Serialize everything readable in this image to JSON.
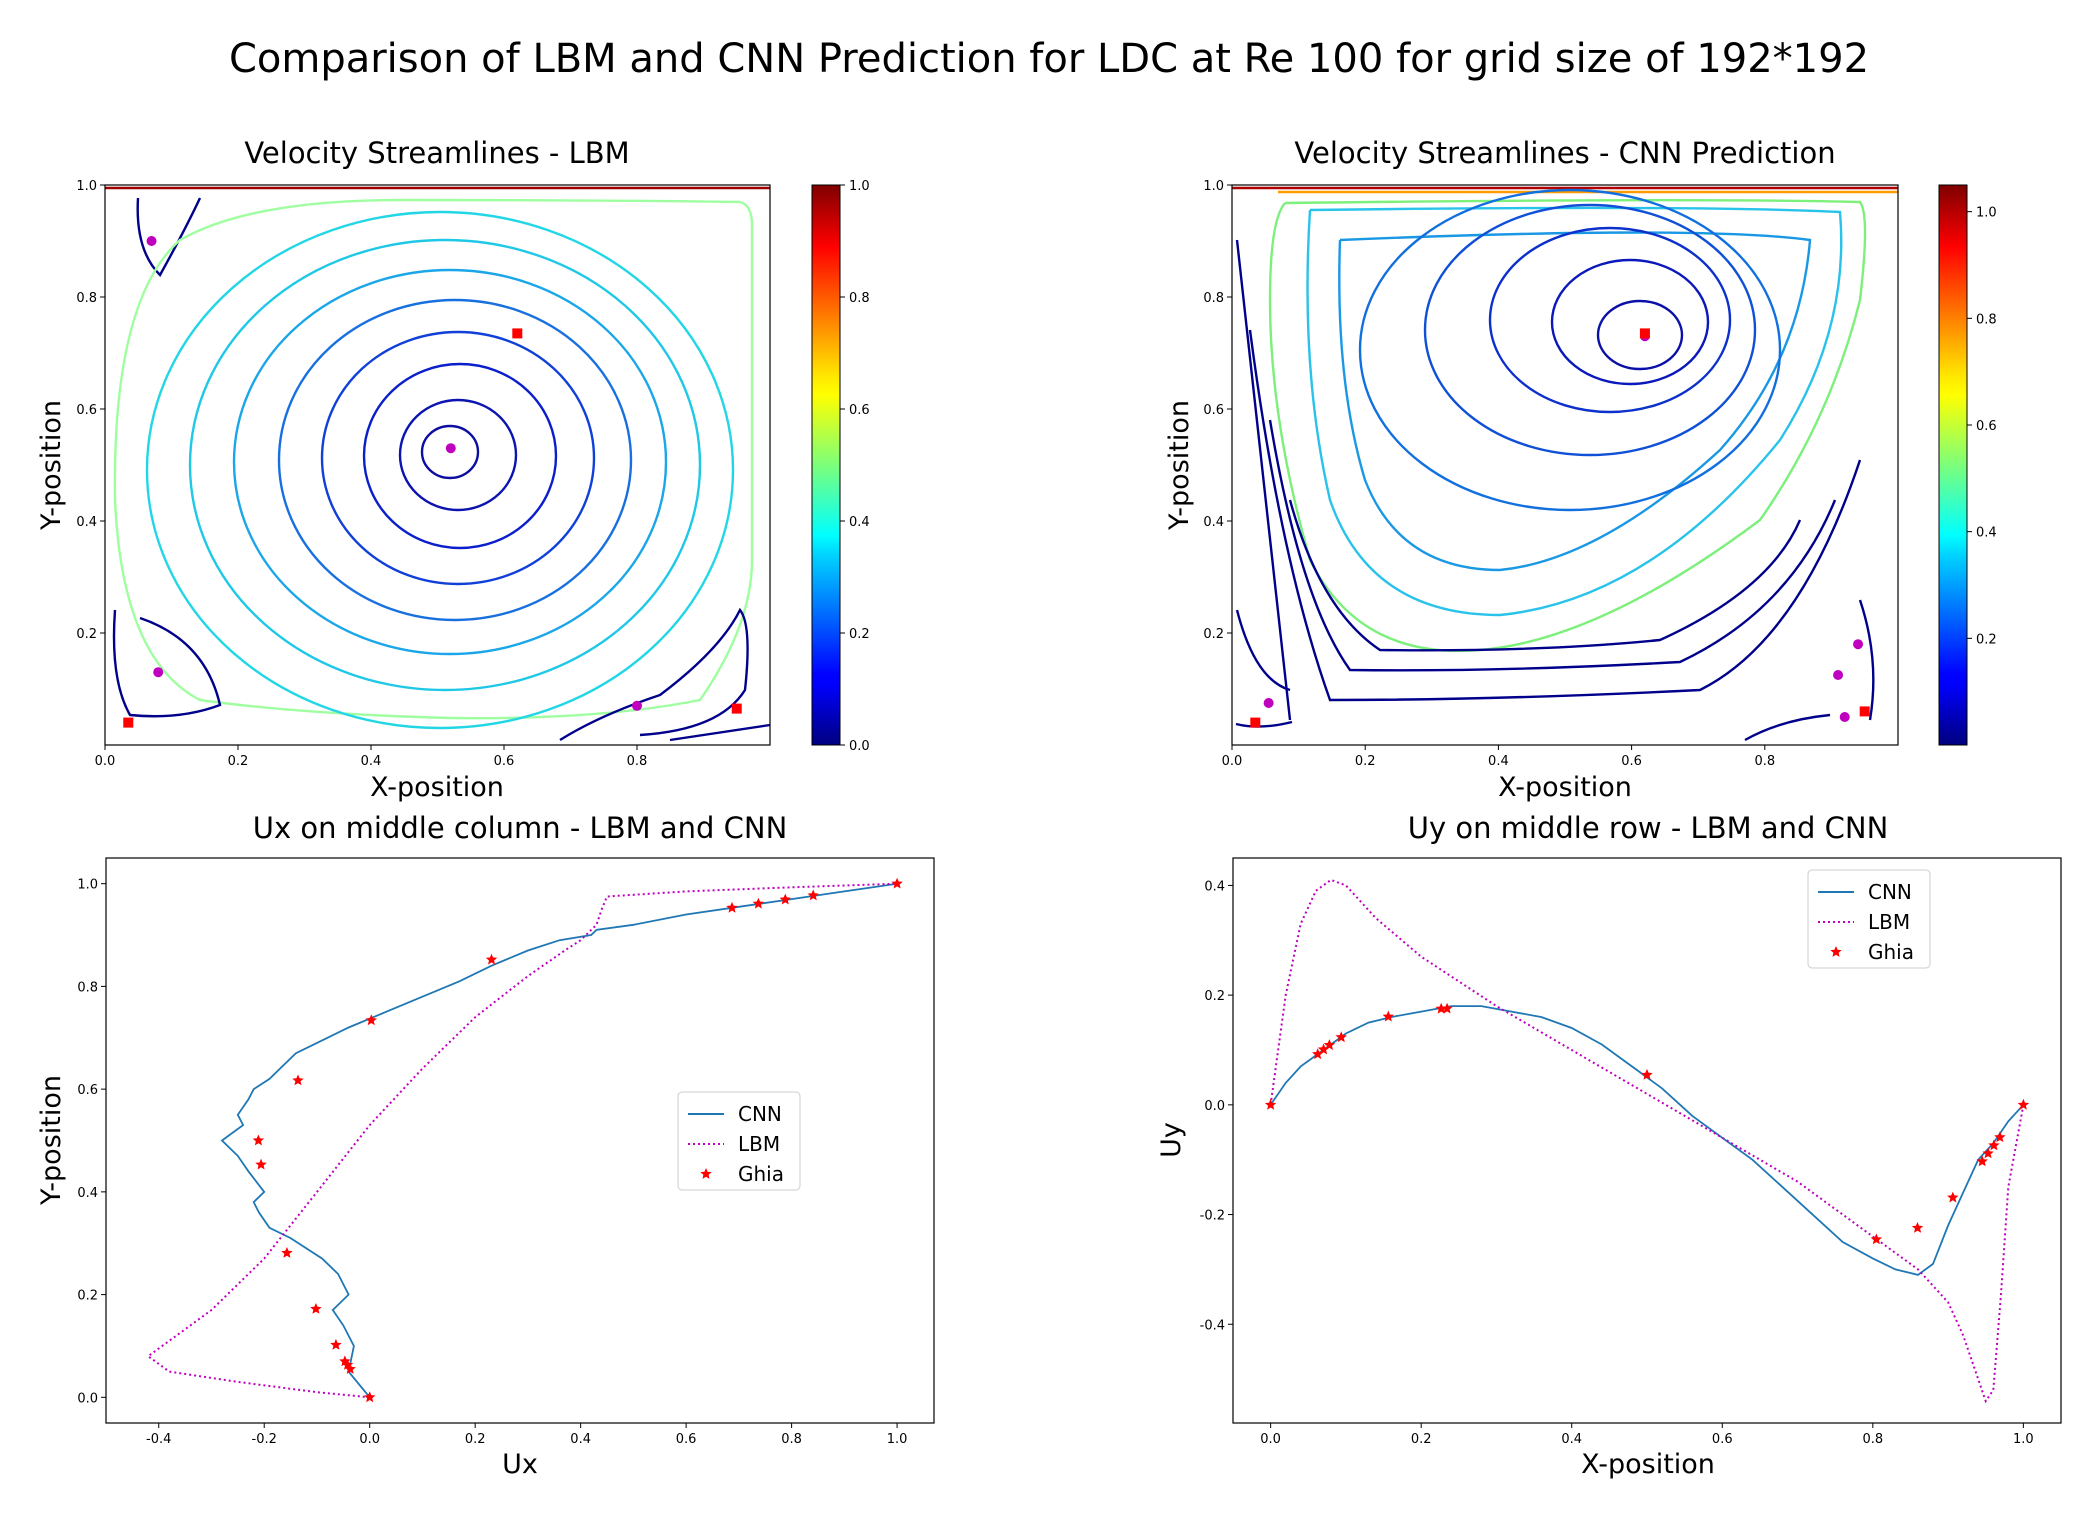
{
  "suptitle": "Comparison of LBM and CNN Prediction for LDC at Re 100 for grid size of 192*192",
  "colors": {
    "cnn": "#1f77b4",
    "lbm": "#bf00bf",
    "ghia": "#ff0000",
    "center_marker": "#bf00bf",
    "square_marker": "#ff0000",
    "colormap": "jet"
  },
  "chart_data": [
    {
      "type": "streamplot",
      "title": "Velocity Streamlines - LBM",
      "xlabel": "X-position",
      "ylabel": "Y-position",
      "xlim": [
        0,
        1
      ],
      "ylim": [
        0,
        1
      ],
      "xticks": [
        "0.0",
        "0.2",
        "0.4",
        "0.6",
        "0.8"
      ],
      "yticks": [
        "0.2",
        "0.4",
        "0.6",
        "0.8",
        "1.0"
      ],
      "colorbar": {
        "min": 0.0,
        "max": 1.0,
        "ticks": [
          "0.0",
          "0.2",
          "0.4",
          "0.6",
          "0.8",
          "1.0"
        ]
      },
      "vortex_centers": [
        {
          "x": 0.07,
          "y": 0.9
        },
        {
          "x": 0.52,
          "y": 0.53
        },
        {
          "x": 0.08,
          "y": 0.13
        },
        {
          "x": 0.8,
          "y": 0.07
        }
      ],
      "reference_points": [
        {
          "x": 0.62,
          "y": 0.735
        },
        {
          "x": 0.035,
          "y": 0.04
        },
        {
          "x": 0.95,
          "y": 0.065
        }
      ]
    },
    {
      "type": "streamplot",
      "title": "Velocity Streamlines - CNN Prediction",
      "xlabel": "X-position",
      "ylabel": "Y-position",
      "xlim": [
        0,
        1
      ],
      "ylim": [
        0,
        1
      ],
      "xticks": [
        "0.0",
        "0.2",
        "0.4",
        "0.6",
        "0.8"
      ],
      "yticks": [
        "0.2",
        "0.4",
        "0.6",
        "0.8",
        "1.0"
      ],
      "colorbar": {
        "min": 0.0,
        "max": 1.05,
        "ticks": [
          "0.2",
          "0.4",
          "0.6",
          "0.8",
          "1.0"
        ]
      },
      "vortex_centers": [
        {
          "x": 0.62,
          "y": 0.73
        },
        {
          "x": 0.055,
          "y": 0.075
        },
        {
          "x": 0.94,
          "y": 0.18
        },
        {
          "x": 0.91,
          "y": 0.125
        },
        {
          "x": 0.92,
          "y": 0.05
        }
      ],
      "reference_points": [
        {
          "x": 0.62,
          "y": 0.735
        },
        {
          "x": 0.035,
          "y": 0.04
        },
        {
          "x": 0.95,
          "y": 0.06
        }
      ]
    },
    {
      "type": "line",
      "title": "Ux on middle column - LBM and CNN",
      "xlabel": "Ux",
      "ylabel": "Y-position",
      "xlim": [
        -0.5,
        1.07
      ],
      "ylim": [
        -0.05,
        1.05
      ],
      "xticks": [
        -0.4,
        -0.2,
        0.0,
        0.2,
        0.4,
        0.6,
        0.8,
        1.0
      ],
      "yticks": [
        0.0,
        0.2,
        0.4,
        0.6,
        0.8,
        1.0
      ],
      "legend": "center-right",
      "series": [
        {
          "name": "CNN",
          "style": "solid",
          "x": [
            0.0,
            -0.04,
            -0.03,
            -0.05,
            -0.07,
            -0.04,
            -0.06,
            -0.09,
            -0.12,
            -0.15,
            -0.19,
            -0.21,
            -0.22,
            -0.2,
            -0.23,
            -0.25,
            -0.28,
            -0.24,
            -0.25,
            -0.23,
            -0.22,
            -0.19,
            -0.17,
            -0.14,
            -0.1,
            -0.04,
            0.03,
            0.1,
            0.17,
            0.23,
            0.3,
            0.36,
            0.42,
            0.43,
            0.5,
            0.6,
            0.7,
            0.8,
            0.9,
            1.0
          ],
          "y": [
            0.0,
            0.05,
            0.1,
            0.14,
            0.17,
            0.2,
            0.24,
            0.27,
            0.29,
            0.31,
            0.33,
            0.36,
            0.38,
            0.4,
            0.44,
            0.47,
            0.5,
            0.53,
            0.55,
            0.58,
            0.6,
            0.62,
            0.64,
            0.67,
            0.69,
            0.72,
            0.75,
            0.78,
            0.81,
            0.84,
            0.87,
            0.89,
            0.9,
            0.91,
            0.92,
            0.94,
            0.955,
            0.97,
            0.985,
            1.0
          ]
        },
        {
          "name": "LBM",
          "style": "dotted",
          "x": [
            0.0,
            -0.1,
            -0.25,
            -0.38,
            -0.42,
            -0.38,
            -0.3,
            -0.2,
            -0.1,
            0.0,
            0.1,
            0.2,
            0.3,
            0.37,
            0.4,
            0.43,
            0.44,
            0.45,
            0.6,
            0.8,
            1.0
          ],
          "y": [
            0.0,
            0.01,
            0.03,
            0.05,
            0.08,
            0.11,
            0.17,
            0.27,
            0.4,
            0.53,
            0.64,
            0.74,
            0.82,
            0.87,
            0.89,
            0.92,
            0.95,
            0.975,
            0.985,
            0.993,
            1.0
          ]
        },
        {
          "name": "Ghia",
          "style": "markers",
          "x": [
            0.0,
            -0.037,
            -0.042,
            -0.047,
            -0.064,
            -0.102,
            -0.157,
            -0.206,
            -0.211,
            -0.136,
            0.003,
            0.231,
            0.687,
            0.737,
            0.788,
            0.841,
            1.0
          ],
          "y": [
            0.0,
            0.055,
            0.063,
            0.07,
            0.102,
            0.172,
            0.281,
            0.453,
            0.5,
            0.617,
            0.734,
            0.852,
            0.953,
            0.961,
            0.969,
            0.977,
            1.0
          ]
        }
      ]
    },
    {
      "type": "line",
      "title": "Uy on middle row - LBM and CNN",
      "xlabel": "X-position",
      "ylabel": "Uy",
      "xlim": [
        -0.05,
        1.05
      ],
      "ylim": [
        -0.58,
        0.45
      ],
      "xticks": [
        0.0,
        0.2,
        0.4,
        0.6,
        0.8,
        1.0
      ],
      "yticks": [
        -0.4,
        -0.2,
        0.0,
        0.2,
        0.4
      ],
      "legend": "top-right",
      "series": [
        {
          "name": "CNN",
          "style": "solid",
          "x": [
            0.0,
            0.02,
            0.04,
            0.06,
            0.08,
            0.1,
            0.13,
            0.16,
            0.2,
            0.24,
            0.28,
            0.32,
            0.36,
            0.4,
            0.44,
            0.48,
            0.52,
            0.56,
            0.6,
            0.64,
            0.68,
            0.72,
            0.76,
            0.8,
            0.83,
            0.86,
            0.88,
            0.9,
            0.92,
            0.94,
            0.96,
            0.98,
            1.0
          ],
          "y": [
            0.0,
            0.04,
            0.07,
            0.09,
            0.11,
            0.13,
            0.15,
            0.16,
            0.17,
            0.18,
            0.18,
            0.17,
            0.16,
            0.14,
            0.11,
            0.07,
            0.03,
            -0.02,
            -0.06,
            -0.1,
            -0.15,
            -0.2,
            -0.25,
            -0.28,
            -0.3,
            -0.31,
            -0.29,
            -0.22,
            -0.16,
            -0.1,
            -0.07,
            -0.03,
            0.0
          ]
        },
        {
          "name": "LBM",
          "style": "dotted",
          "x": [
            0.0,
            0.02,
            0.04,
            0.06,
            0.08,
            0.1,
            0.14,
            0.2,
            0.3,
            0.4,
            0.5,
            0.6,
            0.7,
            0.8,
            0.86,
            0.9,
            0.92,
            0.94,
            0.95,
            0.96,
            0.97,
            0.98,
            1.0
          ],
          "y": [
            0.0,
            0.2,
            0.33,
            0.39,
            0.41,
            0.4,
            0.34,
            0.27,
            0.18,
            0.1,
            0.02,
            -0.06,
            -0.14,
            -0.24,
            -0.3,
            -0.36,
            -0.42,
            -0.5,
            -0.54,
            -0.52,
            -0.35,
            -0.15,
            0.0
          ]
        },
        {
          "name": "Ghia",
          "style": "markers",
          "x": [
            0.0,
            0.0625,
            0.0703,
            0.0781,
            0.0938,
            0.1563,
            0.2266,
            0.2344,
            0.5,
            0.8047,
            0.8594,
            0.9063,
            0.9453,
            0.9531,
            0.9609,
            0.9688,
            1.0
          ],
          "y": [
            0.0,
            0.0923,
            0.1009,
            0.1089,
            0.1232,
            0.1608,
            0.1751,
            0.1753,
            0.0545,
            -0.2453,
            -0.2245,
            -0.1691,
            -0.1031,
            -0.0886,
            -0.0739,
            -0.0591,
            0.0
          ]
        }
      ]
    }
  ]
}
